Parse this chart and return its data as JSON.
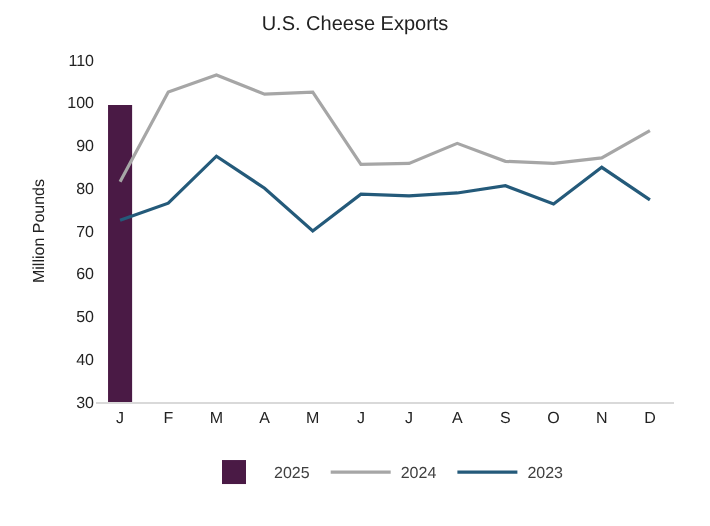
{
  "chart_data": {
    "type": "line",
    "title": "U.S. Cheese Exports",
    "ylabel": "Million Pounds",
    "categories": [
      "J",
      "F",
      "M",
      "A",
      "M",
      "J",
      "J",
      "A",
      "S",
      "O",
      "N",
      "D"
    ],
    "series": [
      {
        "name": "2025",
        "type": "bar",
        "color": "#4a1a45",
        "values": [
          99.5,
          null,
          null,
          null,
          null,
          null,
          null,
          null,
          null,
          null,
          null,
          null
        ]
      },
      {
        "name": "2024",
        "color": "#a6a6a6",
        "values": [
          81.5,
          102.5,
          106.5,
          102,
          102.5,
          85.6,
          85.8,
          90.5,
          86.3,
          85.8,
          87.1,
          93.5
        ]
      },
      {
        "name": "2023",
        "color": "#245a7a",
        "values": [
          72.5,
          76.5,
          87.5,
          80,
          70,
          78.6,
          78.2,
          78.9,
          80.6,
          76.3,
          84.9,
          77.3
        ]
      }
    ],
    "ylim": [
      30,
      110
    ],
    "yticks": [
      30,
      40,
      50,
      60,
      70,
      80,
      90,
      100,
      110
    ],
    "grid": false,
    "legend": "bottom"
  }
}
